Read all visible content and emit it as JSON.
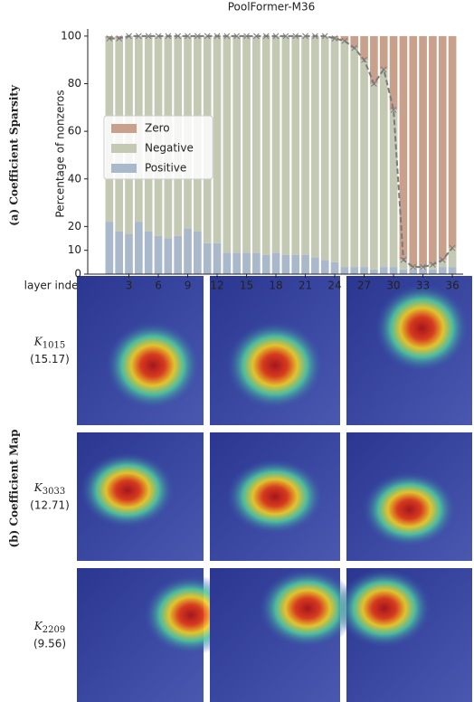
{
  "chart_data": {
    "type": "stacked-bar",
    "title": "PoolFormer-M36",
    "ylabel": "Percentage of nonzeros",
    "xlabel": "layer index",
    "x": [
      1,
      2,
      3,
      4,
      5,
      6,
      7,
      8,
      9,
      10,
      11,
      12,
      13,
      14,
      15,
      16,
      17,
      18,
      19,
      20,
      21,
      22,
      23,
      24,
      25,
      26,
      27,
      28,
      29,
      30,
      31,
      32,
      33,
      34,
      35,
      36
    ],
    "xlim": [
      -1.2,
      37.1
    ],
    "xticks": [
      3,
      6,
      9,
      12,
      15,
      18,
      21,
      24,
      27,
      30,
      33,
      36
    ],
    "ylim": [
      0,
      103
    ],
    "yticks": [
      0,
      10,
      20,
      40,
      60,
      80,
      100
    ],
    "legend": "upper left",
    "series": [
      {
        "name": "Positive",
        "color": "#a9b8cb",
        "values": [
          22,
          18,
          17,
          22,
          18,
          16,
          15,
          16,
          19,
          18,
          13,
          13,
          9,
          9,
          9,
          9,
          8,
          9,
          8,
          8,
          8,
          7,
          6,
          5,
          3,
          3,
          3,
          2,
          3,
          3,
          2,
          2,
          2,
          2,
          3,
          3
        ]
      },
      {
        "name": "Negative",
        "color": "#c4c9b4",
        "values": [
          77,
          81,
          83,
          78,
          82,
          84,
          85,
          84,
          81,
          82,
          87,
          87,
          91,
          91,
          91,
          91,
          92,
          91,
          92,
          92,
          92,
          93,
          94,
          94,
          95,
          92,
          87,
          78,
          83,
          66,
          4,
          1,
          1,
          2,
          3,
          8
        ]
      },
      {
        "name": "Zero",
        "color": "#c9a08b",
        "values": [
          1,
          1,
          0,
          0,
          0,
          0,
          0,
          0,
          0,
          0,
          0,
          0,
          0,
          0,
          0,
          0,
          0,
          0,
          0,
          0,
          0,
          0,
          0,
          1,
          2,
          5,
          10,
          20,
          14,
          31,
          94,
          97,
          97,
          96,
          94,
          89
        ]
      }
    ],
    "line_color": "#7a7a7a",
    "line_values": [
      99,
      99,
      100,
      100,
      100,
      100,
      100,
      100,
      100,
      100,
      100,
      100,
      100,
      100,
      100,
      100,
      100,
      100,
      100,
      100,
      100,
      100,
      100,
      99,
      98,
      95,
      90,
      80,
      86,
      69,
      6,
      3,
      3,
      4,
      6,
      11
    ]
  },
  "figure": {
    "panel_a_label": "(a) Coefficient Sparsity",
    "panel_b_label": "(b) Coefficient Map",
    "rows": [
      {
        "symbol": "K",
        "index": "1015",
        "score": "(15.17)"
      },
      {
        "symbol": "K",
        "index": "3033",
        "score": "(12.71)"
      },
      {
        "symbol": "K",
        "index": "2209",
        "score": "(9.56)"
      }
    ]
  }
}
